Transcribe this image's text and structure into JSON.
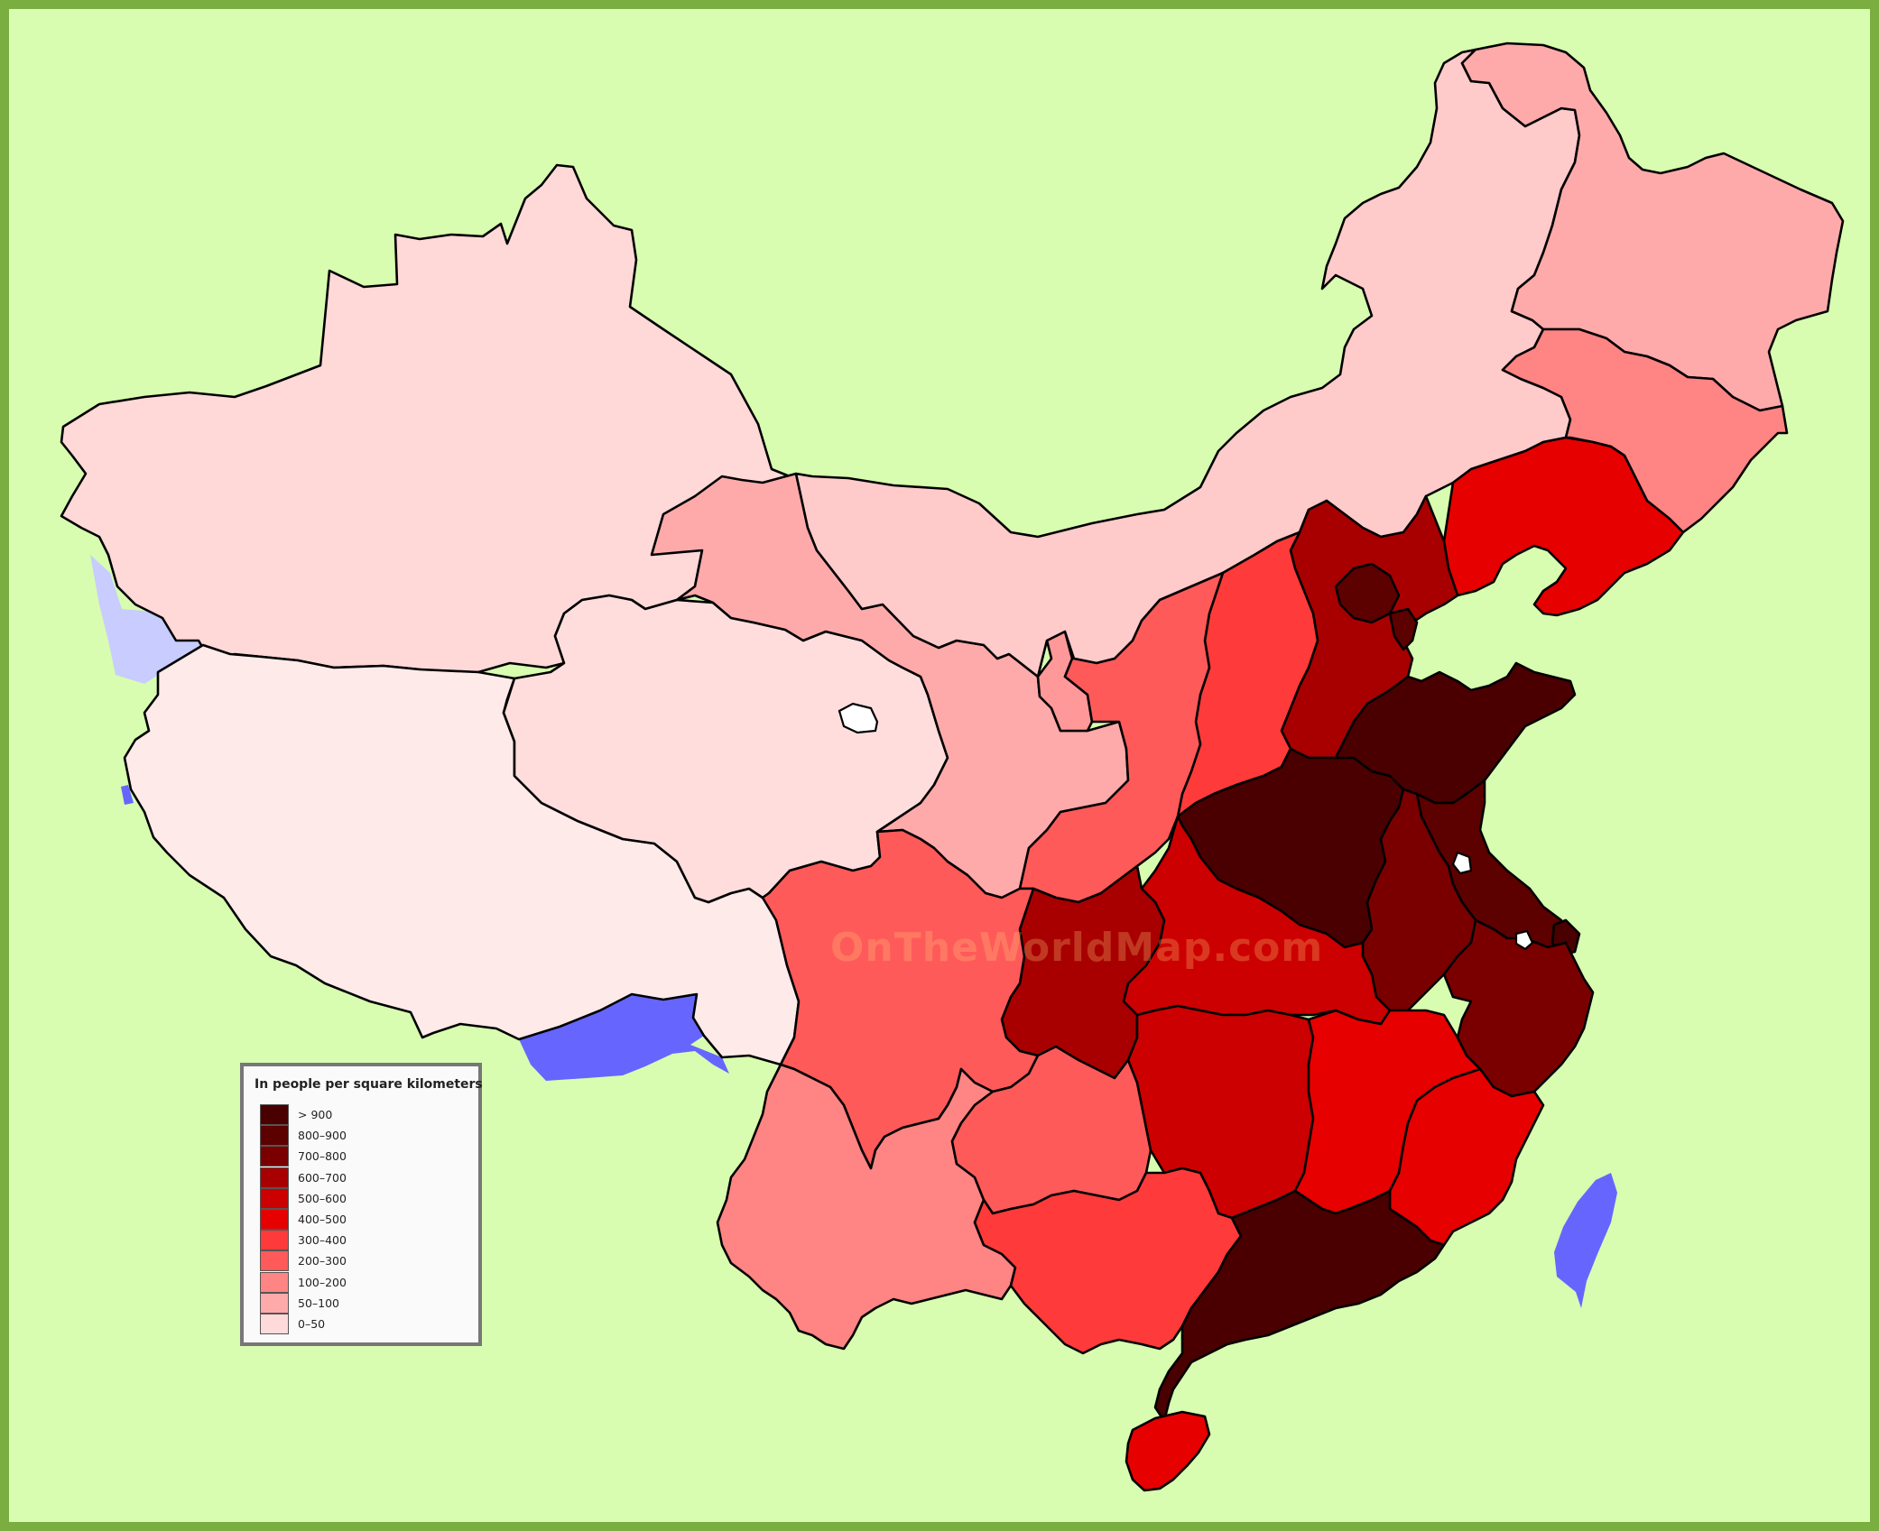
{
  "map": {
    "watermark": "OnTheWorldMap.com",
    "colors": {
      "background": "#d8fdb0",
      "frame": "#7aae40",
      "foreign_light": "#c8ccff",
      "foreign_dark": "#6666ff",
      "lake": "#ffffff"
    }
  },
  "legend": {
    "title": "In people per square kilometers",
    "classes": [
      {
        "label": "> 900",
        "color": "#4a0000"
      },
      {
        "label": "800–900",
        "color": "#5c0000"
      },
      {
        "label": "700–800",
        "color": "#7a0000"
      },
      {
        "label": "600–700",
        "color": "#a80000"
      },
      {
        "label": "500–600",
        "color": "#cc0000"
      },
      {
        "label": "400–500",
        "color": "#e60000"
      },
      {
        "label": "300–400",
        "color": "#ff3a3a"
      },
      {
        "label": "200–300",
        "color": "#ff5a5a"
      },
      {
        "label": "100–200",
        "color": "#ff8484"
      },
      {
        "label": "50–100",
        "color": "#ffaaaa"
      },
      {
        "label": "0–50",
        "color": "#ffdada"
      }
    ]
  }
}
